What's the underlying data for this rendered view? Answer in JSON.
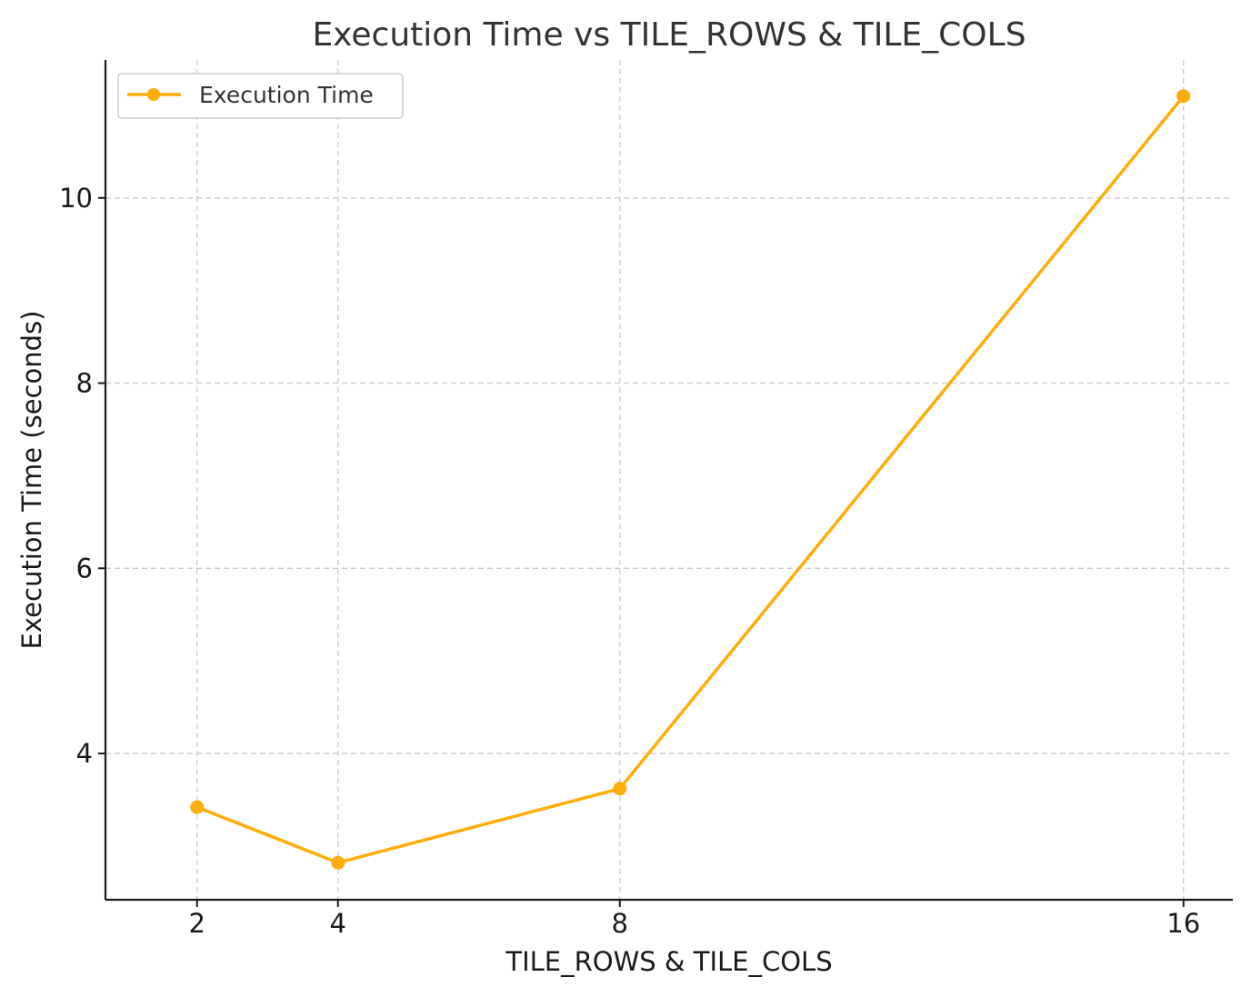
{
  "chart_data": {
    "type": "line",
    "title": "Execution Time vs TILE_ROWS & TILE_COLS",
    "xlabel": "TILE_ROWS & TILE_COLS",
    "ylabel": "Execution Time (seconds)",
    "x": [
      2,
      4,
      8,
      16
    ],
    "xticks": [
      2,
      4,
      8,
      16
    ],
    "xlim": [
      0.7,
      16.7
    ],
    "yticks": [
      4,
      6,
      8,
      10
    ],
    "ylim": [
      2.42,
      11.49
    ],
    "grid": true,
    "legend_position": "top-left",
    "series": [
      {
        "name": "Execution Time",
        "color": "#ffad0a",
        "marker": "circle",
        "values": [
          3.42,
          2.82,
          3.62,
          11.1
        ]
      }
    ]
  }
}
